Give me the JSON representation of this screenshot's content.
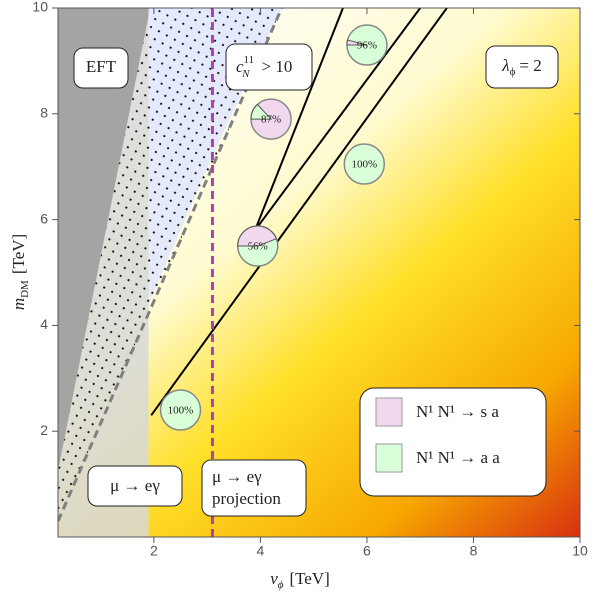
{
  "chart_data": {
    "type": "region-map",
    "xlim": [
      0.2,
      10
    ],
    "ylim": [
      0,
      10
    ],
    "xticks": [
      2,
      4,
      6,
      8,
      10
    ],
    "yticks": [
      2,
      4,
      6,
      8,
      10
    ],
    "x_label": {
      "main": "v",
      "sub": "ϕ",
      "unit": "[TeV]"
    },
    "y_label": {
      "main": "m",
      "sub": "DM",
      "unit": "[TeV]"
    },
    "regions": [
      {
        "x": [
          0.2,
          1.9,
          1.9,
          0.2
        ],
        "y": [
          0,
          0,
          10,
          10
        ],
        "color": "#d8d8d8"
      },
      {
        "x": [
          0.2,
          1.93,
          0.2
        ],
        "y": [
          1.25,
          10,
          10
        ],
        "color": "#9a9a9a"
      },
      {
        "x": [
          1.9,
          4.4,
          3.1,
          1.9
        ],
        "y": [
          10,
          10,
          7.2,
          4.4
        ],
        "color": "#dfe6ff"
      }
    ],
    "dotted_region": {
      "x": [
        0.2,
        1.93,
        4.4,
        0.2
      ],
      "y": [
        1.25,
        10,
        10,
        0.3
      ]
    },
    "curves": [
      {
        "x": [
          1.95,
          7.5
        ],
        "y": [
          2.3,
          10
        ],
        "color": "#000000",
        "style": "solid"
      },
      {
        "x": [
          3.9,
          7.0
        ],
        "y": [
          5.8,
          10
        ],
        "color": "#000000",
        "style": "solid"
      },
      {
        "x": [
          3.9,
          5.55
        ],
        "y": [
          5.8,
          10
        ],
        "color": "#000000",
        "style": "solid"
      },
      {
        "x": [
          0.2,
          4.4
        ],
        "y": [
          0.3,
          10
        ],
        "color": "#808080",
        "style": "dashed"
      },
      {
        "x": [
          3.1,
          3.1
        ],
        "y": [
          0,
          10
        ],
        "color": "#b040b0",
        "style": "dashed"
      }
    ],
    "pies": [
      {
        "x": 4.2,
        "y": 7.9,
        "value": 87,
        "value_label": "87%",
        "color": "#f2d8ef"
      },
      {
        "x": 6.0,
        "y": 9.3,
        "value": 96,
        "value_label": "96%",
        "color": "#d9ffd9"
      },
      {
        "x": 5.95,
        "y": 7.05,
        "value": 100,
        "value_label": "100%",
        "color": "#d9ffd9"
      },
      {
        "x": 3.95,
        "y": 5.5,
        "value": 56,
        "value_label": "56%",
        "color": "#d9ffd9"
      },
      {
        "x": 2.5,
        "y": 2.4,
        "value": 100,
        "value_label": "100%",
        "color": "#d9ffd9"
      }
    ],
    "annotations": {
      "eft": "EFT",
      "coupling": {
        "main": "c",
        "sub": "N",
        "sup": "11",
        "rest": "> 10"
      },
      "lambda": {
        "main": "λ",
        "sub": "ϕ",
        "rest": "= 2"
      },
      "mueg": "μ → eγ",
      "projection": [
        "μ → eγ",
        "projection"
      ]
    },
    "legend": [
      {
        "label": "N¹ N¹ → s a",
        "color": "#f2d8ef"
      },
      {
        "label": "N¹ N¹ → a a",
        "color": "#d9ffd9"
      }
    ]
  }
}
